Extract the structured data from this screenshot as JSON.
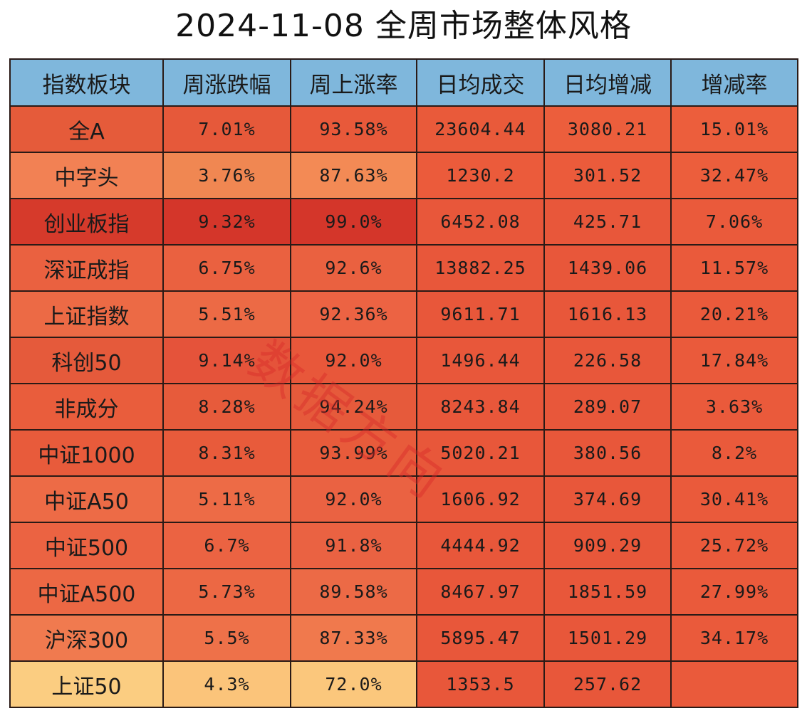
{
  "chart_data": {
    "type": "table",
    "title": "2024-11-08  全周市场整体风格",
    "columns": [
      "指数板块",
      "周涨跌幅",
      "周上涨率",
      "日均成交",
      "日均增减",
      "增减率"
    ],
    "rows": [
      {
        "name": "全A",
        "values": [
          "7.01%",
          "93.58%",
          "23604.44",
          "3080.21",
          "15.01%"
        ],
        "colors": [
          "#e55b3a",
          "#e6593a",
          "#e8593a",
          "#e95a3a",
          "#ec5e3c",
          "#ec5e3c"
        ]
      },
      {
        "name": "中字头",
        "values": [
          "3.76%",
          "87.63%",
          "1230.2",
          "301.52",
          "32.47%"
        ],
        "colors": [
          "#f28154",
          "#f08752",
          "#f38a55",
          "#eb5b3b",
          "#eb5b3b",
          "#ec5e3c"
        ]
      },
      {
        "name": "创业板指",
        "values": [
          "9.32%",
          "99.0%",
          "6452.08",
          "425.71",
          "7.06%"
        ],
        "colors": [
          "#d63a2b",
          "#d4362a",
          "#d4362a",
          "#e8573a",
          "#e8573a",
          "#ea5a3b"
        ]
      },
      {
        "name": "深证成指",
        "values": [
          "6.75%",
          "92.6%",
          "13882.25",
          "1439.06",
          "11.57%"
        ],
        "colors": [
          "#ea6140",
          "#ea6140",
          "#ea6140",
          "#e8573a",
          "#e8573a",
          "#ea5a3b"
        ]
      },
      {
        "name": "上证指数",
        "values": [
          "5.51%",
          "92.36%",
          "9611.71",
          "1616.13",
          "20.21%"
        ],
        "colors": [
          "#ec6a45",
          "#ec6a45",
          "#ec6343",
          "#e8573a",
          "#e8573a",
          "#ea5a3b"
        ]
      },
      {
        "name": "科创50",
        "values": [
          "9.14%",
          "92.0%",
          "1496.44",
          "226.58",
          "17.84%"
        ],
        "colors": [
          "#e55a3b",
          "#e5533a",
          "#e8573a",
          "#e8573a",
          "#e8573a",
          "#ea5a3b"
        ]
      },
      {
        "name": "非成分",
        "values": [
          "8.28%",
          "94.24%",
          "8243.84",
          "289.07",
          "3.63%"
        ],
        "colors": [
          "#e95d3c",
          "#e75b3b",
          "#e65a3b",
          "#e8573a",
          "#e8573a",
          "#ea5a3b"
        ]
      },
      {
        "name": "中证1000",
        "values": [
          "8.31%",
          "93.99%",
          "5020.21",
          "380.56",
          "8.2%"
        ],
        "colors": [
          "#e85b3b",
          "#e85b3b",
          "#e85b3b",
          "#e8573a",
          "#e8573a",
          "#ea5a3b"
        ]
      },
      {
        "name": "中证A50",
        "values": [
          "5.11%",
          "92.0%",
          "1606.92",
          "374.69",
          "30.41%"
        ],
        "colors": [
          "#ed6b46",
          "#ed6b46",
          "#ea6242",
          "#e8573a",
          "#e8573a",
          "#ea5a3b"
        ]
      },
      {
        "name": "中证500",
        "values": [
          "6.7%",
          "91.8%",
          "4444.92",
          "909.29",
          "25.72%"
        ],
        "colors": [
          "#eb6342",
          "#eb6342",
          "#ea6242",
          "#e8573a",
          "#e8573a",
          "#ea5a3b"
        ]
      },
      {
        "name": "中证A500",
        "values": [
          "5.73%",
          "89.58%",
          "8467.97",
          "1851.59",
          "27.99%"
        ],
        "colors": [
          "#ec6844",
          "#ec6844",
          "#ec6a46",
          "#e8573a",
          "#e8573a",
          "#ea5a3b"
        ]
      },
      {
        "name": "沪深300",
        "values": [
          "5.5%",
          "87.33%",
          "5895.47",
          "1501.29",
          "34.17%"
        ],
        "colors": [
          "#f07a4f",
          "#ee7149",
          "#f0794d",
          "#e8573a",
          "#e8573a",
          "#ea5a3b"
        ]
      },
      {
        "name": "上证50",
        "values": [
          "4.3%",
          "72.0%",
          "1353.5",
          "257.62",
          ""
        ],
        "colors": [
          "#fbcd81",
          "#fbc47a",
          "#fbc77c",
          "#e8573a",
          "#e8573a",
          "#ea5a3b"
        ]
      }
    ]
  },
  "watermark": "数据方向"
}
